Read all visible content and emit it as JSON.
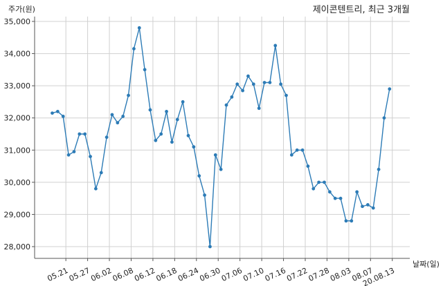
{
  "chart_data": {
    "type": "line",
    "title": "제이콘텐트리, 최근 3개월",
    "ylabel": "주가(원)",
    "xlabel": "날짜(일)",
    "ylim": [
      27600,
      35000
    ],
    "y_ticks": [
      28000,
      29000,
      30000,
      31000,
      32000,
      33000,
      34000,
      35000
    ],
    "y_tick_labels": [
      "28,000",
      "29,000",
      "30,000",
      "31,000",
      "32,000",
      "33,000",
      "34,000",
      "35,000"
    ],
    "x_tick_labels": [
      "05.21",
      "05.27",
      "06.02",
      "06.08",
      "06.12",
      "06.18",
      "06.24",
      "06.30",
      "07.06",
      "07.10",
      "07.16",
      "07.22",
      "07.28",
      "08.03",
      "08.07",
      "20.08.13"
    ],
    "x_tick_index": [
      2.5,
      6.5,
      10.5,
      14.5,
      18.5,
      22.5,
      26.5,
      30.5,
      34.5,
      38.5,
      42.5,
      46.5,
      50.5,
      54.5,
      58.5,
      62.5
    ],
    "grid": true,
    "line_color": "#2c7bb6",
    "series": [
      {
        "values": [
          32150,
          32200,
          32050,
          30850,
          30950,
          31500,
          31500,
          30800,
          29800,
          30300,
          31400,
          32100,
          31850,
          32050,
          32700,
          34150,
          34800,
          33500,
          32250,
          31300,
          31500,
          32200,
          31250,
          31950,
          32500,
          31450,
          31100,
          30200,
          29600,
          28000,
          30850,
          30400,
          32400,
          32650,
          33050,
          32850,
          33300,
          33050,
          32300,
          33100,
          33100,
          34250,
          33050,
          32700,
          30850,
          31000,
          31000,
          30500,
          29800,
          30000,
          30000,
          29700,
          29500,
          29500,
          28800,
          28800,
          29700,
          29250,
          29300,
          29200,
          30400,
          32000,
          32900
        ]
      }
    ]
  }
}
